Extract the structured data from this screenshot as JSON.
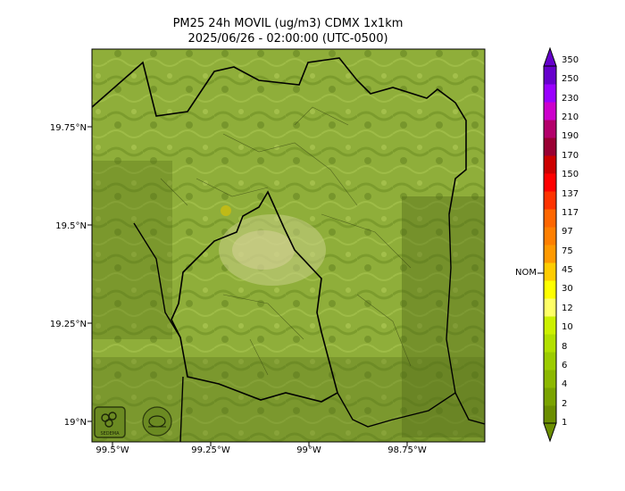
{
  "title": {
    "line1": "PM25 24h MOVIL (ug/m3) CDMX 1x1km",
    "line2": "2025/06/26 - 02:00:00 (UTC-0500)"
  },
  "map": {
    "lat_ticks": [
      "19.75°N",
      "19.5°N",
      "19.25°N",
      "19°N"
    ],
    "lon_ticks": [
      "99.5°W",
      "99.25°W",
      "99°W",
      "98.75°W"
    ],
    "background_color": "#8fae3a",
    "boundary_color": "#000000"
  },
  "colorbar": {
    "nom_label": "NOM",
    "levels": [
      "1",
      "2",
      "4",
      "6",
      "8",
      "10",
      "12",
      "30",
      "45",
      "75",
      "97",
      "117",
      "137",
      "150",
      "170",
      "190",
      "210",
      "230",
      "250",
      "350"
    ],
    "colors": [
      "#6b8e00",
      "#7aa300",
      "#8cb800",
      "#9ccc00",
      "#b2e000",
      "#ccf000",
      "#ffff66",
      "#ffff00",
      "#ffcc00",
      "#ff9900",
      "#ff7f00",
      "#ff6600",
      "#ff3300",
      "#ff0000",
      "#cc0000",
      "#990033",
      "#b3006b",
      "#cc00cc",
      "#9900ff",
      "#6600cc"
    ]
  },
  "logos": {
    "left": "SEDEMA"
  }
}
